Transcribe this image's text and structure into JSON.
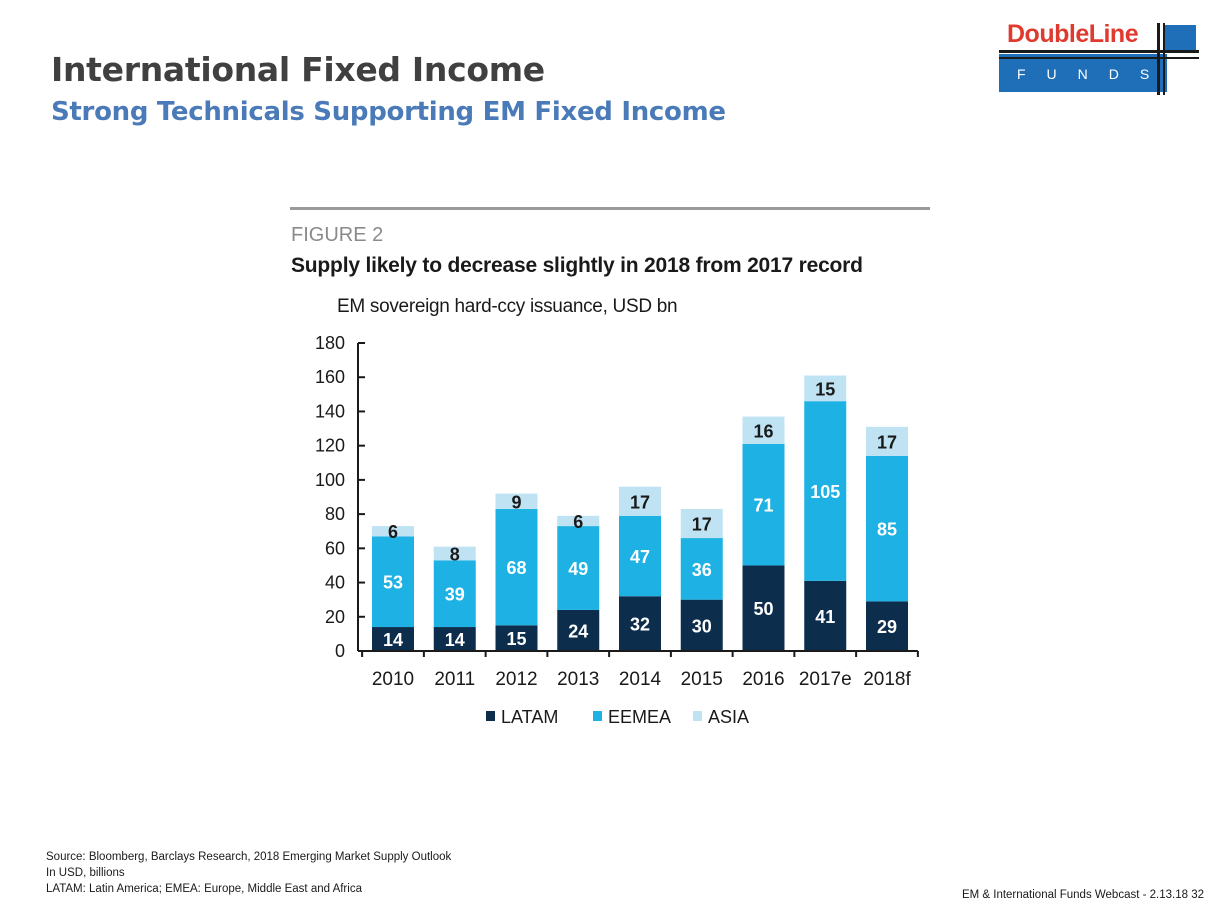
{
  "slide": {
    "title": "International Fixed Income",
    "subtitle": "Strong Technicals Supporting EM Fixed Income"
  },
  "logo": {
    "name": "DoubleLine",
    "sub": "FUNDS",
    "colors": {
      "red": "#e03a2f",
      "blue": "#1f6fb8"
    }
  },
  "figure": {
    "label": "FIGURE 2",
    "title": "Supply likely to decrease slightly in 2018 from 2017 record",
    "subtitle": "EM sovereign hard-ccy issuance, USD bn"
  },
  "chart_data": {
    "type": "bar",
    "stacked": true,
    "categories": [
      "2010",
      "2011",
      "2012",
      "2013",
      "2014",
      "2015",
      "2016",
      "2017e",
      "2018f"
    ],
    "series": [
      {
        "name": "LATAM",
        "color": "#0d2d4d",
        "label_color": "#ffffff",
        "values": [
          14,
          14,
          15,
          24,
          32,
          30,
          50,
          41,
          29
        ]
      },
      {
        "name": "EEMEA",
        "color": "#1eb1e3",
        "label_color": "#ffffff",
        "values": [
          53,
          39,
          68,
          49,
          47,
          36,
          71,
          105,
          85
        ]
      },
      {
        "name": "ASIA",
        "color": "#bfe3f3",
        "label_color": "#1a1a1a",
        "values": [
          6,
          8,
          9,
          6,
          17,
          17,
          16,
          15,
          17
        ]
      }
    ],
    "title": "Supply likely to decrease slightly in 2018 from 2017 record",
    "ylabel": "EM sovereign hard-ccy issuance, USD bn",
    "xlabel": "",
    "ylim": [
      0,
      180
    ],
    "yticks": [
      0,
      20,
      40,
      60,
      80,
      100,
      120,
      140,
      160,
      180
    ],
    "legend_position": "bottom"
  },
  "footnotes": [
    "Source:  Bloomberg, Barclays Research, 2018 Emerging Market Supply Outlook",
    "In USD, billions",
    "LATAM: Latin America; EMEA: Europe, Middle East and Africa"
  ],
  "footer": "EM & International Funds Webcast - 2.13.18  32"
}
